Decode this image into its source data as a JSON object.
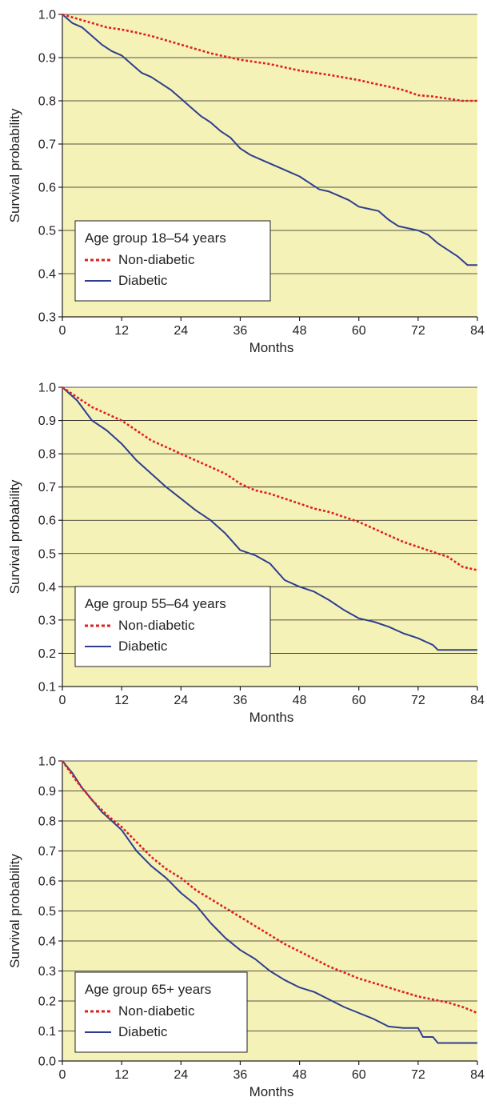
{
  "chart_data": [
    {
      "type": "line",
      "legend_title": "Age group 18–54 years",
      "xlabel": "Months",
      "ylabel": "Survival probability",
      "xlim": [
        0,
        84
      ],
      "ylim": [
        0.3,
        1.0
      ],
      "xticks": [
        0,
        12,
        24,
        36,
        48,
        60,
        72,
        84
      ],
      "xtick_labels": [
        "0",
        "12",
        "24",
        "36",
        "48",
        "60",
        "72",
        "84"
      ],
      "yticks": [
        0.3,
        0.4,
        0.5,
        0.6,
        0.7,
        0.8,
        0.9,
        1.0
      ],
      "ytick_labels": [
        "0.3",
        "0.4",
        "0.5",
        "0.6",
        "0.7",
        "0.8",
        "0.9",
        "1.0"
      ],
      "grid": "horizontal",
      "legend_position": "bottom-left",
      "colors": {
        "plot_background": "#f5f2b8",
        "non_diabetic": "#e02020",
        "diabetic": "#2e3f8f"
      },
      "series": [
        {
          "name": "Non-diabetic",
          "style": "dotted",
          "x": [
            0,
            3,
            6,
            9,
            12,
            15,
            18,
            21,
            24,
            30,
            36,
            42,
            48,
            54,
            60,
            63,
            66,
            69,
            72,
            75,
            78,
            81,
            84
          ],
          "y": [
            1.0,
            0.99,
            0.98,
            0.97,
            0.965,
            0.958,
            0.95,
            0.94,
            0.93,
            0.91,
            0.895,
            0.885,
            0.87,
            0.86,
            0.848,
            0.84,
            0.833,
            0.825,
            0.813,
            0.81,
            0.805,
            0.8,
            0.8
          ]
        },
        {
          "name": "Diabetic",
          "style": "solid",
          "x": [
            0,
            2,
            4,
            6,
            8,
            10,
            12,
            14,
            16,
            18,
            20,
            22,
            24,
            26,
            28,
            30,
            32,
            34,
            36,
            38,
            40,
            42,
            44,
            46,
            48,
            50,
            52,
            54,
            56,
            58,
            60,
            62,
            64,
            66,
            68,
            70,
            72,
            74,
            76,
            78,
            80,
            82,
            84
          ],
          "y": [
            1.0,
            0.98,
            0.97,
            0.95,
            0.93,
            0.915,
            0.905,
            0.885,
            0.865,
            0.855,
            0.84,
            0.825,
            0.805,
            0.785,
            0.765,
            0.75,
            0.73,
            0.715,
            0.69,
            0.675,
            0.665,
            0.655,
            0.645,
            0.635,
            0.625,
            0.61,
            0.595,
            0.59,
            0.58,
            0.57,
            0.555,
            0.55,
            0.545,
            0.525,
            0.51,
            0.505,
            0.5,
            0.49,
            0.47,
            0.455,
            0.44,
            0.42,
            0.42
          ]
        }
      ]
    },
    {
      "type": "line",
      "legend_title": "Age group 55–64 years",
      "xlabel": "Months",
      "ylabel": "Survival probability",
      "xlim": [
        0,
        84
      ],
      "ylim": [
        0.1,
        1.0
      ],
      "xticks": [
        0,
        12,
        24,
        36,
        48,
        60,
        72,
        84
      ],
      "xtick_labels": [
        "0",
        "12",
        "24",
        "36",
        "48",
        "60",
        "72",
        "84"
      ],
      "yticks": [
        0.1,
        0.2,
        0.3,
        0.4,
        0.5,
        0.6,
        0.7,
        0.8,
        0.9,
        1.0
      ],
      "ytick_labels": [
        "0.1",
        "0.2",
        "0.3",
        "0.4",
        "0.5",
        "0.6",
        "0.7",
        "0.8",
        "0.9",
        "1.0"
      ],
      "grid": "horizontal",
      "legend_position": "bottom-left",
      "colors": {
        "plot_background": "#f5f2b8",
        "non_diabetic": "#e02020",
        "diabetic": "#2e3f8f"
      },
      "series": [
        {
          "name": "Non-diabetic",
          "style": "dotted",
          "x": [
            0,
            3,
            6,
            9,
            12,
            15,
            18,
            21,
            24,
            27,
            30,
            33,
            36,
            39,
            42,
            45,
            48,
            51,
            54,
            57,
            60,
            63,
            66,
            69,
            72,
            75,
            78,
            81,
            84
          ],
          "y": [
            1.0,
            0.97,
            0.94,
            0.92,
            0.9,
            0.87,
            0.84,
            0.82,
            0.8,
            0.78,
            0.76,
            0.74,
            0.71,
            0.69,
            0.68,
            0.665,
            0.65,
            0.635,
            0.625,
            0.61,
            0.595,
            0.575,
            0.555,
            0.535,
            0.52,
            0.505,
            0.49,
            0.46,
            0.45
          ]
        },
        {
          "name": "Diabetic",
          "style": "solid",
          "x": [
            0,
            3,
            6,
            9,
            12,
            15,
            18,
            21,
            24,
            27,
            30,
            33,
            36,
            39,
            42,
            45,
            48,
            51,
            54,
            57,
            60,
            63,
            66,
            69,
            72,
            75,
            76,
            80,
            84
          ],
          "y": [
            1.0,
            0.96,
            0.9,
            0.87,
            0.83,
            0.78,
            0.74,
            0.7,
            0.665,
            0.63,
            0.6,
            0.56,
            0.51,
            0.495,
            0.47,
            0.42,
            0.4,
            0.385,
            0.36,
            0.33,
            0.305,
            0.295,
            0.28,
            0.26,
            0.245,
            0.225,
            0.21,
            0.21,
            0.21
          ]
        }
      ]
    },
    {
      "type": "line",
      "legend_title": "Age group 65+ years",
      "xlabel": "Months",
      "ylabel": "Survival probability",
      "xlim": [
        0,
        84
      ],
      "ylim": [
        0.0,
        1.0
      ],
      "xticks": [
        0,
        12,
        24,
        36,
        48,
        60,
        72,
        84
      ],
      "xtick_labels": [
        "0",
        "12",
        "24",
        "36",
        "48",
        "60",
        "72",
        "84"
      ],
      "yticks": [
        0.0,
        0.1,
        0.2,
        0.3,
        0.4,
        0.5,
        0.6,
        0.7,
        0.8,
        0.9,
        1.0
      ],
      "ytick_labels": [
        "0.0",
        "0.1",
        "0.2",
        "0.3",
        "0.4",
        "0.5",
        "0.6",
        "0.7",
        "0.8",
        "0.9",
        "1.0"
      ],
      "grid": "horizontal",
      "legend_position": "bottom-left",
      "colors": {
        "plot_background": "#f5f2b8",
        "non_diabetic": "#e02020",
        "diabetic": "#2e3f8f"
      },
      "series": [
        {
          "name": "Non-diabetic",
          "style": "dotted",
          "x": [
            0,
            3,
            6,
            9,
            12,
            15,
            18,
            21,
            24,
            27,
            30,
            33,
            36,
            39,
            42,
            45,
            48,
            51,
            54,
            57,
            60,
            63,
            66,
            69,
            72,
            75,
            78,
            81,
            84
          ],
          "y": [
            1.0,
            0.93,
            0.87,
            0.82,
            0.78,
            0.73,
            0.68,
            0.64,
            0.61,
            0.57,
            0.54,
            0.51,
            0.48,
            0.45,
            0.42,
            0.39,
            0.365,
            0.34,
            0.315,
            0.295,
            0.275,
            0.26,
            0.245,
            0.23,
            0.215,
            0.205,
            0.195,
            0.18,
            0.16
          ]
        },
        {
          "name": "Diabetic",
          "style": "solid",
          "x": [
            0,
            2,
            4,
            6,
            8,
            10,
            12,
            15,
            18,
            21,
            24,
            27,
            30,
            33,
            36,
            39,
            42,
            45,
            48,
            51,
            54,
            57,
            60,
            63,
            66,
            69,
            72,
            73,
            75,
            76,
            78,
            84
          ],
          "y": [
            1.0,
            0.96,
            0.91,
            0.87,
            0.83,
            0.8,
            0.77,
            0.7,
            0.65,
            0.61,
            0.56,
            0.52,
            0.46,
            0.41,
            0.37,
            0.34,
            0.3,
            0.27,
            0.245,
            0.23,
            0.205,
            0.18,
            0.16,
            0.14,
            0.115,
            0.11,
            0.11,
            0.08,
            0.08,
            0.06,
            0.06,
            0.06
          ]
        }
      ]
    }
  ]
}
